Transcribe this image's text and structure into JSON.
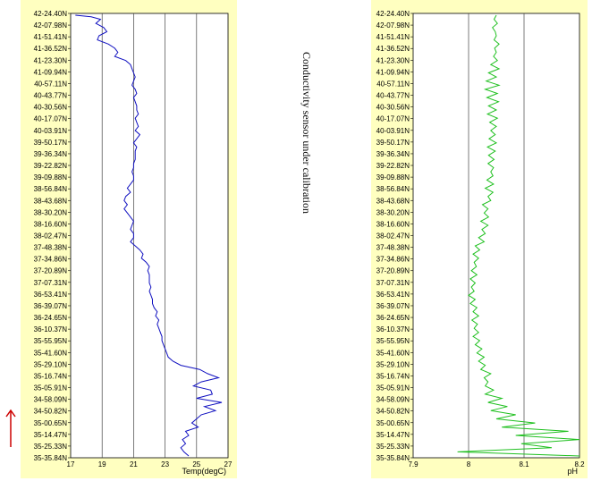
{
  "side_note": "Conductivity sensor under calibration",
  "indicator": {
    "icon": "red-up-arrow-icon",
    "color": "#cc0000"
  },
  "colors": {
    "panel_bg": "#ffffc0",
    "plot_bg": "#ffffff",
    "temp_line": "#1010c0",
    "ph_line": "#20c020",
    "grid": "#000000"
  },
  "y_labels": [
    "42-24.40N",
    "42-07.98N",
    "41-51.41N",
    "41-36.52N",
    "41-23.30N",
    "41-09.94N",
    "40-57.11N",
    "40-43.77N",
    "40-30.56N",
    "40-17.07N",
    "40-03.91N",
    "39-50.17N",
    "39-36.34N",
    "39-22.82N",
    "39-09.88N",
    "38-56.84N",
    "38-43.68N",
    "38-30.20N",
    "38-16.60N",
    "38-02.47N",
    "37-48.38N",
    "37-34.86N",
    "37-20.89N",
    "37-07.31N",
    "36-53.41N",
    "36-39.07N",
    "36-24.65N",
    "36-10.37N",
    "35-55.95N",
    "35-41.60N",
    "35-29.10N",
    "35-16.74N",
    "35-05.91N",
    "34-58.09N",
    "34-50.82N",
    "35-00.65N",
    "35-14.47N",
    "35-25.33N",
    "35-35.84N"
  ],
  "chart_data": [
    {
      "type": "line",
      "xlabel": "Temp(degC)",
      "ylabel": "",
      "xlim": [
        17,
        27
      ],
      "x_ticks": [
        "17",
        "19",
        "21",
        "23",
        "25",
        "27"
      ],
      "x_tick_values": [
        17,
        19,
        21,
        23,
        25,
        27
      ],
      "grid": "vertical",
      "series": [
        {
          "values": [
            [
              17.3,
              0
            ],
            [
              18.3,
              0.4
            ],
            [
              18.9,
              1
            ],
            [
              18.6,
              2
            ],
            [
              19.1,
              3
            ],
            [
              19.3,
              4
            ],
            [
              18.8,
              5
            ],
            [
              18.7,
              6
            ],
            [
              19.4,
              7
            ],
            [
              19.8,
              8
            ],
            [
              20.0,
              9
            ],
            [
              19.8,
              10
            ],
            [
              20.5,
              11
            ],
            [
              20.8,
              12
            ],
            [
              20.9,
              13
            ],
            [
              21.0,
              14
            ],
            [
              21.1,
              15
            ],
            [
              21.0,
              16
            ],
            [
              20.9,
              17
            ],
            [
              21.1,
              18
            ],
            [
              21.2,
              19
            ],
            [
              21.0,
              20
            ],
            [
              21.1,
              21
            ],
            [
              21.2,
              22
            ],
            [
              21.2,
              23
            ],
            [
              21.3,
              24
            ],
            [
              21.1,
              25
            ],
            [
              21.2,
              26
            ],
            [
              21.3,
              27
            ],
            [
              21.1,
              28
            ],
            [
              21.4,
              29
            ],
            [
              21.2,
              30
            ],
            [
              21.0,
              31
            ],
            [
              21.2,
              32
            ],
            [
              21.1,
              33
            ],
            [
              21.1,
              34
            ],
            [
              21.1,
              35
            ],
            [
              21.0,
              36
            ],
            [
              21.0,
              37
            ],
            [
              20.9,
              38
            ],
            [
              21.0,
              39
            ],
            [
              21.0,
              40
            ],
            [
              20.8,
              41
            ],
            [
              20.6,
              42
            ],
            [
              20.8,
              43
            ],
            [
              20.5,
              44
            ],
            [
              20.4,
              45
            ],
            [
              20.6,
              46
            ],
            [
              20.4,
              47
            ],
            [
              20.6,
              48
            ],
            [
              20.8,
              49
            ],
            [
              21.0,
              50
            ],
            [
              20.9,
              51
            ],
            [
              20.8,
              52
            ],
            [
              21.0,
              53
            ],
            [
              21.0,
              54
            ],
            [
              20.8,
              55
            ],
            [
              21.1,
              56
            ],
            [
              21.4,
              57
            ],
            [
              21.6,
              58
            ],
            [
              21.5,
              59
            ],
            [
              21.8,
              60
            ],
            [
              22.0,
              61
            ],
            [
              21.9,
              62
            ],
            [
              22.0,
              63
            ],
            [
              22.0,
              64
            ],
            [
              22.0,
              65
            ],
            [
              22.1,
              66
            ],
            [
              22.0,
              67
            ],
            [
              22.1,
              68
            ],
            [
              22.2,
              69
            ],
            [
              22.2,
              70
            ],
            [
              22.3,
              71
            ],
            [
              22.5,
              72
            ],
            [
              22.4,
              73
            ],
            [
              22.6,
              74
            ],
            [
              22.5,
              75
            ],
            [
              22.6,
              76
            ],
            [
              22.7,
              77
            ],
            [
              22.8,
              78
            ],
            [
              22.8,
              79
            ],
            [
              22.9,
              80
            ],
            [
              23.0,
              81
            ],
            [
              23.1,
              82
            ],
            [
              23.2,
              83
            ],
            [
              23.5,
              84
            ],
            [
              24.0,
              85
            ],
            [
              25.2,
              86
            ],
            [
              25.7,
              87
            ],
            [
              26.4,
              88
            ],
            [
              25.3,
              89
            ],
            [
              24.8,
              90
            ],
            [
              25.9,
              91
            ],
            [
              26.0,
              92
            ],
            [
              25.0,
              93
            ],
            [
              26.6,
              94
            ],
            [
              25.5,
              95
            ],
            [
              26.2,
              96
            ],
            [
              25.3,
              97
            ],
            [
              25.0,
              98
            ],
            [
              24.7,
              99
            ],
            [
              25.1,
              100
            ],
            [
              24.3,
              101
            ],
            [
              24.5,
              102
            ],
            [
              24.1,
              103
            ],
            [
              24.3,
              104
            ],
            [
              24.0,
              105
            ],
            [
              24.2,
              106
            ],
            [
              24.5,
              107
            ]
          ]
        }
      ]
    },
    {
      "type": "line",
      "xlabel": "pH",
      "ylabel": "",
      "xlim": [
        7.9,
        8.2
      ],
      "x_ticks": [
        "7.9",
        "8",
        "8.1",
        "8.2"
      ],
      "x_tick_values": [
        7.9,
        8.0,
        8.1,
        8.2
      ],
      "grid": "vertical",
      "series": [
        {
          "values": [
            [
              8.05,
              0
            ],
            [
              8.046,
              1
            ],
            [
              8.052,
              2
            ],
            [
              8.043,
              3
            ],
            [
              8.048,
              4
            ],
            [
              8.05,
              5
            ],
            [
              8.046,
              6
            ],
            [
              8.055,
              7
            ],
            [
              8.047,
              8
            ],
            [
              8.05,
              9
            ],
            [
              8.045,
              10
            ],
            [
              8.052,
              11
            ],
            [
              8.04,
              12
            ],
            [
              8.055,
              13
            ],
            [
              8.036,
              14
            ],
            [
              8.05,
              15
            ],
            [
              8.032,
              16
            ],
            [
              8.055,
              17
            ],
            [
              8.03,
              18
            ],
            [
              8.052,
              19
            ],
            [
              8.033,
              20
            ],
            [
              8.054,
              21
            ],
            [
              8.036,
              22
            ],
            [
              8.05,
              23
            ],
            [
              8.034,
              24
            ],
            [
              8.052,
              25
            ],
            [
              8.038,
              26
            ],
            [
              8.05,
              27
            ],
            [
              8.04,
              28
            ],
            [
              8.048,
              29
            ],
            [
              8.037,
              30
            ],
            [
              8.05,
              31
            ],
            [
              8.034,
              32
            ],
            [
              8.048,
              33
            ],
            [
              8.036,
              34
            ],
            [
              8.046,
              35
            ],
            [
              8.035,
              36
            ],
            [
              8.045,
              37
            ],
            [
              8.04,
              38
            ],
            [
              8.044,
              39
            ],
            [
              8.033,
              40
            ],
            [
              8.045,
              41
            ],
            [
              8.03,
              42
            ],
            [
              8.044,
              43
            ],
            [
              8.035,
              44
            ],
            [
              8.04,
              45
            ],
            [
              8.025,
              46
            ],
            [
              8.035,
              47
            ],
            [
              8.028,
              48
            ],
            [
              8.036,
              49
            ],
            [
              8.022,
              50
            ],
            [
              8.035,
              51
            ],
            [
              8.024,
              52
            ],
            [
              8.03,
              53
            ],
            [
              8.018,
              54
            ],
            [
              8.028,
              55
            ],
            [
              8.012,
              56
            ],
            [
              8.02,
              57
            ],
            [
              8.008,
              58
            ],
            [
              8.018,
              59
            ],
            [
              8.01,
              60
            ],
            [
              8.014,
              61
            ],
            [
              8.005,
              62
            ],
            [
              8.015,
              63
            ],
            [
              8.003,
              64
            ],
            [
              8.012,
              65
            ],
            [
              8.005,
              66
            ],
            [
              8.01,
              67
            ],
            [
              8.0,
              68
            ],
            [
              8.012,
              69
            ],
            [
              8.003,
              70
            ],
            [
              8.015,
              71
            ],
            [
              8.008,
              72
            ],
            [
              8.018,
              73
            ],
            [
              8.006,
              74
            ],
            [
              8.016,
              75
            ],
            [
              8.01,
              76
            ],
            [
              8.018,
              77
            ],
            [
              8.008,
              78
            ],
            [
              8.02,
              79
            ],
            [
              8.012,
              80
            ],
            [
              8.024,
              81
            ],
            [
              8.015,
              82
            ],
            [
              8.028,
              83
            ],
            [
              8.018,
              84
            ],
            [
              8.03,
              85
            ],
            [
              8.022,
              86
            ],
            [
              8.04,
              87
            ],
            [
              8.028,
              88
            ],
            [
              8.035,
              89
            ],
            [
              8.03,
              90
            ],
            [
              8.045,
              91
            ],
            [
              8.03,
              92
            ],
            [
              8.06,
              93
            ],
            [
              8.035,
              94
            ],
            [
              8.07,
              95
            ],
            [
              8.04,
              96
            ],
            [
              8.085,
              97
            ],
            [
              8.05,
              98
            ],
            [
              8.12,
              99
            ],
            [
              8.06,
              100
            ],
            [
              8.18,
              101
            ],
            [
              8.085,
              102
            ],
            [
              8.2,
              103
            ],
            [
              8.095,
              104
            ],
            [
              8.15,
              105
            ],
            [
              7.98,
              106
            ],
            [
              8.2,
              107
            ]
          ]
        }
      ]
    }
  ]
}
